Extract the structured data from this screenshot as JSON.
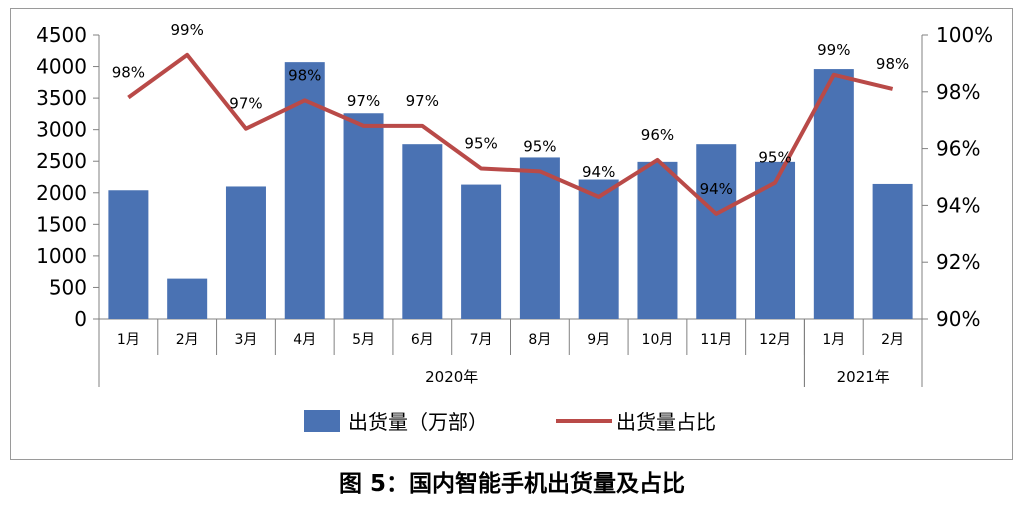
{
  "chart_data": {
    "type": "bar",
    "categories": [
      "1月",
      "2月",
      "3月",
      "4月",
      "5月",
      "6月",
      "7月",
      "8月",
      "9月",
      "10月",
      "11月",
      "12月",
      "1月",
      "2月"
    ],
    "groups": [
      {
        "label": "2020年",
        "from": 0,
        "to": 11
      },
      {
        "label": "2021年",
        "from": 12,
        "to": 13
      }
    ],
    "series": [
      {
        "name": "出货量（万部）",
        "type": "bar",
        "axis": "left",
        "color": "#4a72b3",
        "values": [
          2040,
          640,
          2100,
          4070,
          3260,
          2770,
          2130,
          2560,
          2210,
          2490,
          2770,
          2490,
          3960,
          2140
        ]
      },
      {
        "name": "出货量占比",
        "type": "line",
        "axis": "right",
        "color": "#b94a48",
        "values": [
          97.8,
          99.3,
          96.7,
          97.7,
          96.8,
          96.8,
          95.3,
          95.2,
          94.3,
          95.6,
          93.7,
          94.8,
          98.6,
          98.1
        ],
        "labels": [
          "98%",
          "99%",
          "97%",
          "98%",
          "97%",
          "97%",
          "95%",
          "95%",
          "94%",
          "96%",
          "94%",
          "95%",
          "99%",
          "98%"
        ]
      }
    ],
    "yleft": {
      "lim": [
        0,
        4500
      ],
      "ticks": [
        "0",
        "500",
        "1000",
        "1500",
        "2000",
        "2500",
        "3000",
        "3500",
        "4000",
        "4500"
      ]
    },
    "yright": {
      "lim": [
        90,
        100
      ],
      "ticks": [
        "90%",
        "92%",
        "94%",
        "96%",
        "98%",
        "100%"
      ]
    },
    "legend_position": "bottom",
    "grid": false,
    "caption": "图 5：国内智能手机出货量及占比"
  }
}
